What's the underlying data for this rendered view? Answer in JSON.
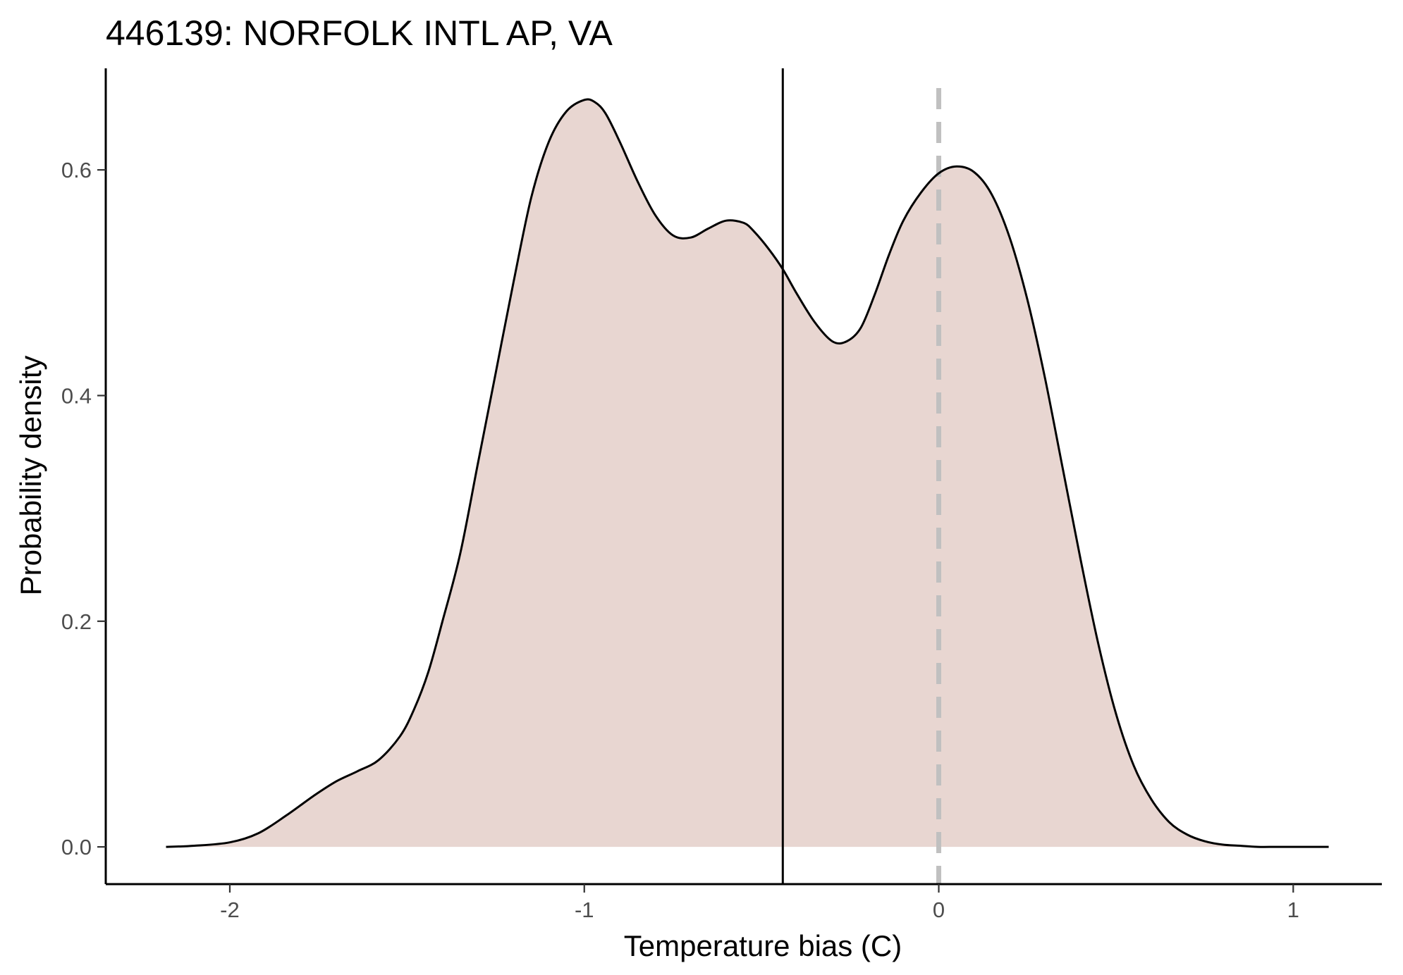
{
  "chart_data": {
    "type": "area",
    "title": "446139: NORFOLK INTL AP, VA",
    "xlabel": "Temperature bias (C)",
    "ylabel": "Probability density",
    "xlim": [
      -2.35,
      1.25
    ],
    "ylim": [
      -0.033,
      0.69
    ],
    "x_ticks": [
      -2,
      -1,
      0,
      1
    ],
    "x_tick_labels": [
      "-2",
      "-1",
      "0",
      "1"
    ],
    "y_ticks": [
      0.0,
      0.2,
      0.4,
      0.6
    ],
    "y_tick_labels": [
      "0.0",
      "0.2",
      "0.4",
      "0.6"
    ],
    "grid": false,
    "legend": "none",
    "series": [
      {
        "x": [
          -2.18,
          -2.1,
          -2.0,
          -1.92,
          -1.84,
          -1.76,
          -1.7,
          -1.64,
          -1.58,
          -1.52,
          -1.48,
          -1.44,
          -1.4,
          -1.35,
          -1.3,
          -1.25,
          -1.2,
          -1.15,
          -1.1,
          -1.05,
          -1.0,
          -0.97,
          -0.94,
          -0.9,
          -0.85,
          -0.8,
          -0.75,
          -0.7,
          -0.65,
          -0.6,
          -0.55,
          -0.52,
          -0.48,
          -0.44,
          -0.4,
          -0.35,
          -0.3,
          -0.26,
          -0.22,
          -0.18,
          -0.14,
          -0.1,
          -0.05,
          0.0,
          0.05,
          0.1,
          0.15,
          0.2,
          0.25,
          0.3,
          0.35,
          0.4,
          0.45,
          0.5,
          0.55,
          0.6,
          0.65,
          0.7,
          0.75,
          0.8,
          0.85,
          0.9,
          0.95,
          1.0,
          1.05,
          1.1
        ],
        "y": [
          0.0,
          0.001,
          0.004,
          0.012,
          0.028,
          0.046,
          0.058,
          0.067,
          0.077,
          0.098,
          0.122,
          0.155,
          0.2,
          0.26,
          0.34,
          0.42,
          0.5,
          0.575,
          0.625,
          0.652,
          0.662,
          0.66,
          0.65,
          0.625,
          0.59,
          0.56,
          0.542,
          0.54,
          0.548,
          0.555,
          0.553,
          0.545,
          0.53,
          0.512,
          0.49,
          0.465,
          0.448,
          0.448,
          0.46,
          0.49,
          0.525,
          0.555,
          0.58,
          0.597,
          0.603,
          0.598,
          0.578,
          0.54,
          0.485,
          0.415,
          0.335,
          0.255,
          0.18,
          0.118,
          0.072,
          0.042,
          0.022,
          0.011,
          0.005,
          0.002,
          0.001,
          0.0,
          0.0,
          0.0,
          0.0,
          0.0
        ]
      }
    ],
    "reference_lines": [
      {
        "x": -0.44,
        "style": "solid",
        "color": "#000000"
      },
      {
        "x": 0.0,
        "style": "dashed",
        "color": "#c0c0c0"
      }
    ],
    "colors": {
      "fill": "#e8d6d1",
      "line": "#000000"
    }
  }
}
